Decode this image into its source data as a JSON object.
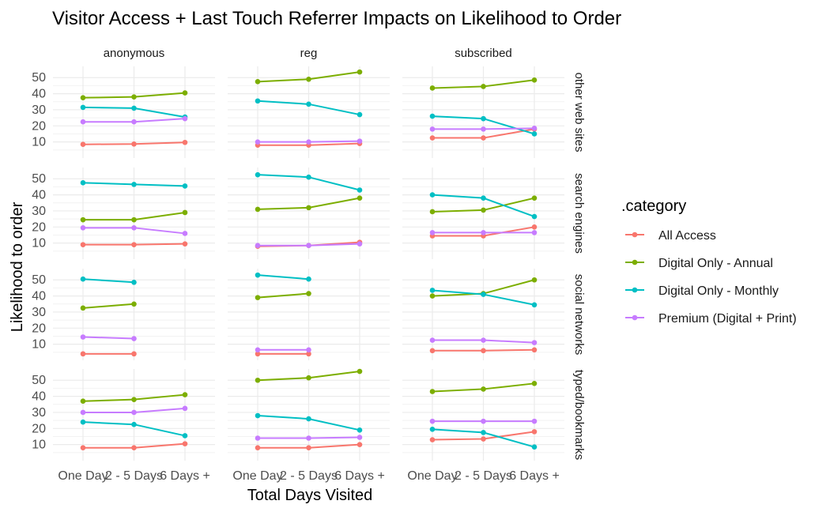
{
  "chart_data": {
    "type": "line",
    "title": "Visitor Access + Last Touch Referrer Impacts on Likelihood to Order",
    "xlabel": "Total Days Visited",
    "ylabel": "Likelihood to order",
    "categories": [
      "One Day",
      "2 - 5 Days",
      "6 Days +"
    ],
    "y_ticks": [
      10,
      20,
      30,
      40,
      50
    ],
    "ylim": [
      0,
      57
    ],
    "grid": true,
    "legend_position": "right",
    "legend_title": ".category",
    "column_facets": [
      "anonymous",
      "reg",
      "subscribed"
    ],
    "row_facets": [
      "other web sites",
      "search engines",
      "social networks",
      "typed/bookmarks"
    ],
    "series": [
      {
        "name": "All Access",
        "color": "#F8766D"
      },
      {
        "name": "Digital Only - Annual",
        "color": "#7CAE00"
      },
      {
        "name": "Digital Only - Monthly",
        "color": "#00BFC4"
      },
      {
        "name": "Premium (Digital + Print)",
        "color": "#C77CFF"
      }
    ],
    "panels": [
      {
        "row": "other web sites",
        "col": "anonymous",
        "values": [
          [
            8.5,
            8.7,
            9.7
          ],
          [
            37.5,
            38,
            40.5
          ],
          [
            31.5,
            31,
            25.5
          ],
          [
            22.5,
            22.5,
            24.5
          ]
        ]
      },
      {
        "row": "other web sites",
        "col": "reg",
        "values": [
          [
            8,
            8,
            9
          ],
          [
            47.5,
            49,
            53.5
          ],
          [
            35.5,
            33.5,
            27
          ],
          [
            10,
            10,
            10.5
          ]
        ]
      },
      {
        "row": "other web sites",
        "col": "subscribed",
        "values": [
          [
            12.5,
            12.5,
            18
          ],
          [
            43.5,
            44.5,
            48.5
          ],
          [
            26,
            24.5,
            15
          ],
          [
            18,
            18,
            18.5
          ]
        ]
      },
      {
        "row": "search engines",
        "col": "anonymous",
        "values": [
          [
            9,
            9,
            9.5
          ],
          [
            24.5,
            24.5,
            29
          ],
          [
            47.5,
            46.5,
            45.5
          ],
          [
            19.5,
            19.5,
            16
          ]
        ]
      },
      {
        "row": "search engines",
        "col": "reg",
        "values": [
          [
            8,
            8.5,
            10.5
          ],
          [
            31,
            32,
            38
          ],
          [
            52.5,
            51,
            43
          ],
          [
            8.5,
            8.5,
            9.5
          ]
        ]
      },
      {
        "row": "search engines",
        "col": "subscribed",
        "values": [
          [
            14.5,
            14.5,
            20
          ],
          [
            29.5,
            30.5,
            38
          ],
          [
            40,
            38,
            26.5
          ],
          [
            16.5,
            16.5,
            16.5
          ]
        ]
      },
      {
        "row": "social networks",
        "col": "anonymous",
        "values": [
          [
            4,
            4,
            null
          ],
          [
            32.5,
            35,
            null
          ],
          [
            50.5,
            48.5,
            null
          ],
          [
            14.5,
            13.5,
            null
          ]
        ]
      },
      {
        "row": "social networks",
        "col": "reg",
        "values": [
          [
            4,
            4,
            null
          ],
          [
            39,
            41.5,
            null
          ],
          [
            53,
            50.5,
            null
          ],
          [
            6.5,
            6.5,
            null
          ]
        ]
      },
      {
        "row": "social networks",
        "col": "subscribed",
        "values": [
          [
            6,
            6,
            6.5
          ],
          [
            40,
            41.5,
            50
          ],
          [
            43.5,
            41,
            34.5
          ],
          [
            12.5,
            12.5,
            11
          ]
        ]
      },
      {
        "row": "typed/bookmarks",
        "col": "anonymous",
        "values": [
          [
            8,
            8,
            10.5
          ],
          [
            37,
            38,
            41
          ],
          [
            24,
            22.5,
            15.5
          ],
          [
            30,
            30,
            32.5
          ]
        ]
      },
      {
        "row": "typed/bookmarks",
        "col": "reg",
        "values": [
          [
            8,
            8,
            10
          ],
          [
            50,
            51.5,
            55.5
          ],
          [
            28,
            26,
            19
          ],
          [
            14,
            14,
            14.5
          ]
        ]
      },
      {
        "row": "typed/bookmarks",
        "col": "subscribed",
        "values": [
          [
            13,
            13.5,
            18
          ],
          [
            43,
            44.5,
            48
          ],
          [
            19.5,
            17.5,
            8.5
          ],
          [
            24.5,
            24.5,
            24.5
          ]
        ]
      }
    ]
  }
}
